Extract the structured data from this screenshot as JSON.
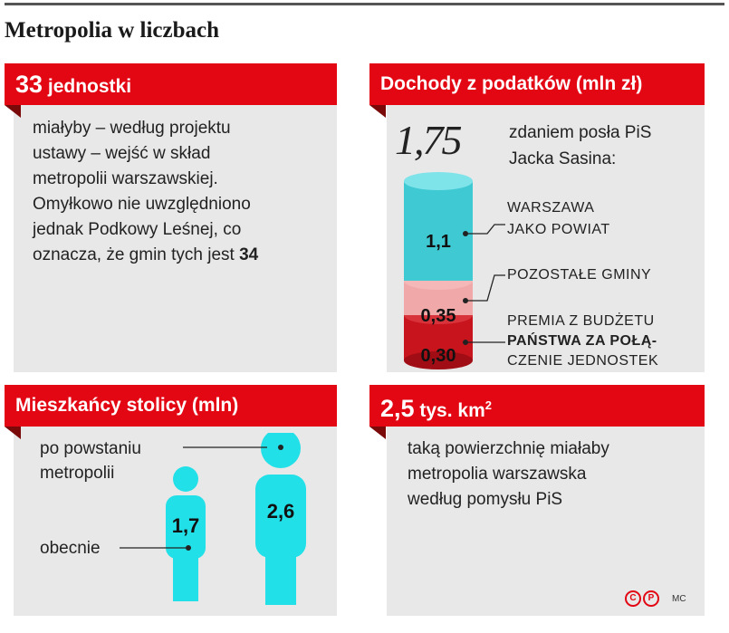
{
  "title": "Metropolia w liczbach",
  "panel1": {
    "banner_num": "33",
    "banner_rest": " jednostki",
    "lines": [
      "miałyby – według projektu",
      "ustawy –  wejść w skład",
      "metropolii warszawskiej.",
      "Omyłkowo nie uwzględniono",
      "jednak Podkowy Leśnej, co"
    ],
    "last_line_text": "oznacza, że gmin tych jest ",
    "last_line_bold": "34"
  },
  "panel2": {
    "banner": "Dochody z podatków (mln zł)",
    "total": "1,75",
    "caption_lines": [
      "zdaniem posła PiS",
      "Jacka Sasina:"
    ],
    "segments": [
      {
        "value": "1,1",
        "label_lines": [
          "WARSZAWA",
          "JAKO POWIAT"
        ],
        "color": "#3ec9d3"
      },
      {
        "value": "0,35",
        "label_lines": [
          "POZOSTAŁE GMINY"
        ],
        "color": "#f0a8a8"
      },
      {
        "value": "0,30",
        "label_lines": [
          "PREMIA Z BUDŻETU",
          "PAŃSTWA ZA POŁĄ-",
          "CZENIE JEDNOSTEK"
        ],
        "color": "#c8141d"
      }
    ]
  },
  "panel3": {
    "banner": "Mieszkańcy stolicy (mln)",
    "label_after_lines": [
      "po powstaniu",
      "metropolii"
    ],
    "label_now": "obecnie",
    "value_now": "1,7",
    "value_after": "2,6",
    "figure_color": "#22e0e8"
  },
  "panel4": {
    "banner_num": "2,5",
    "banner_rest": " tys. km",
    "banner_sup": "2",
    "lines": [
      "taką powierzchnię miałaby",
      "metropolia warszawska",
      "według pomysłu PiS"
    ]
  },
  "credit": {
    "logo1": "C",
    "logo2": "P",
    "author": "MC"
  },
  "colors": {
    "accent": "#e30613",
    "panel_bg": "#e8e8e8"
  }
}
